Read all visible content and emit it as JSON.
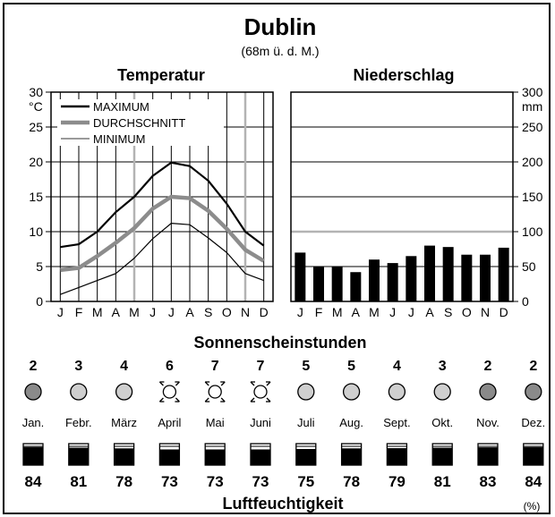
{
  "colors": {
    "max": "#000000",
    "avg": "#8c8c8c",
    "min": "#000000",
    "bar": "#000000",
    "ref_line": "#b3b3b3",
    "sun_low": "#8a8a8a",
    "sun_mid": "#cfcfcf"
  },
  "header": {
    "title": "Dublin",
    "elevation": "(68m ü. d. M.)"
  },
  "chart_data": [
    {
      "type": "line",
      "title": "Temperatur",
      "ylabel_unit": "°C",
      "ylim": [
        0,
        30
      ],
      "yticks": [
        0,
        5,
        10,
        15,
        20,
        25,
        30
      ],
      "categories": [
        "J",
        "F",
        "M",
        "A",
        "M",
        "J",
        "J",
        "A",
        "S",
        "O",
        "N",
        "D"
      ],
      "legend": [
        "MAXIMUM",
        "DURCHSCHNITT",
        "MINIMUM"
      ],
      "series": [
        {
          "name": "MAXIMUM",
          "values": [
            7.8,
            8.2,
            10,
            12.8,
            15,
            18,
            19.9,
            19.4,
            17.3,
            14,
            10,
            8
          ]
        },
        {
          "name": "DURCHSCHNITT",
          "values": [
            4.5,
            4.8,
            6.5,
            8.4,
            10.5,
            13.3,
            15,
            14.8,
            13,
            10.4,
            7.4,
            5.8
          ]
        },
        {
          "name": "MINIMUM",
          "values": [
            1,
            2,
            3,
            4,
            6.2,
            9,
            11.2,
            11,
            9.1,
            7,
            4,
            3
          ]
        }
      ]
    },
    {
      "type": "bar",
      "title": "Niederschlag",
      "ylabel_unit": "mm",
      "ylim": [
        0,
        300
      ],
      "yticks": [
        0,
        50,
        100,
        150,
        200,
        250,
        300
      ],
      "categories": [
        "J",
        "F",
        "M",
        "A",
        "M",
        "J",
        "J",
        "A",
        "S",
        "O",
        "N",
        "D"
      ],
      "values": [
        70,
        50,
        50,
        42,
        60,
        55,
        65,
        80,
        78,
        67,
        67,
        77
      ]
    }
  ],
  "sunshine": {
    "title": "Sonnenscheinstunden",
    "hours": [
      "2",
      "3",
      "4",
      "6",
      "7",
      "7",
      "5",
      "5",
      "4",
      "3",
      "2",
      "2"
    ],
    "icon_levels": [
      "low",
      "mid",
      "mid",
      "high",
      "high",
      "high",
      "mid",
      "mid",
      "mid",
      "mid",
      "low",
      "low"
    ]
  },
  "months": [
    "Jan.",
    "Febr.",
    "März",
    "April",
    "Mai",
    "Juni",
    "Juli",
    "Aug.",
    "Sept.",
    "Okt.",
    "Nov.",
    "Dez."
  ],
  "humidity": {
    "title": "Luftfeuchtigkeit",
    "unit": "(%)",
    "values": [
      84,
      81,
      78,
      73,
      73,
      73,
      75,
      78,
      79,
      81,
      83,
      84
    ]
  }
}
